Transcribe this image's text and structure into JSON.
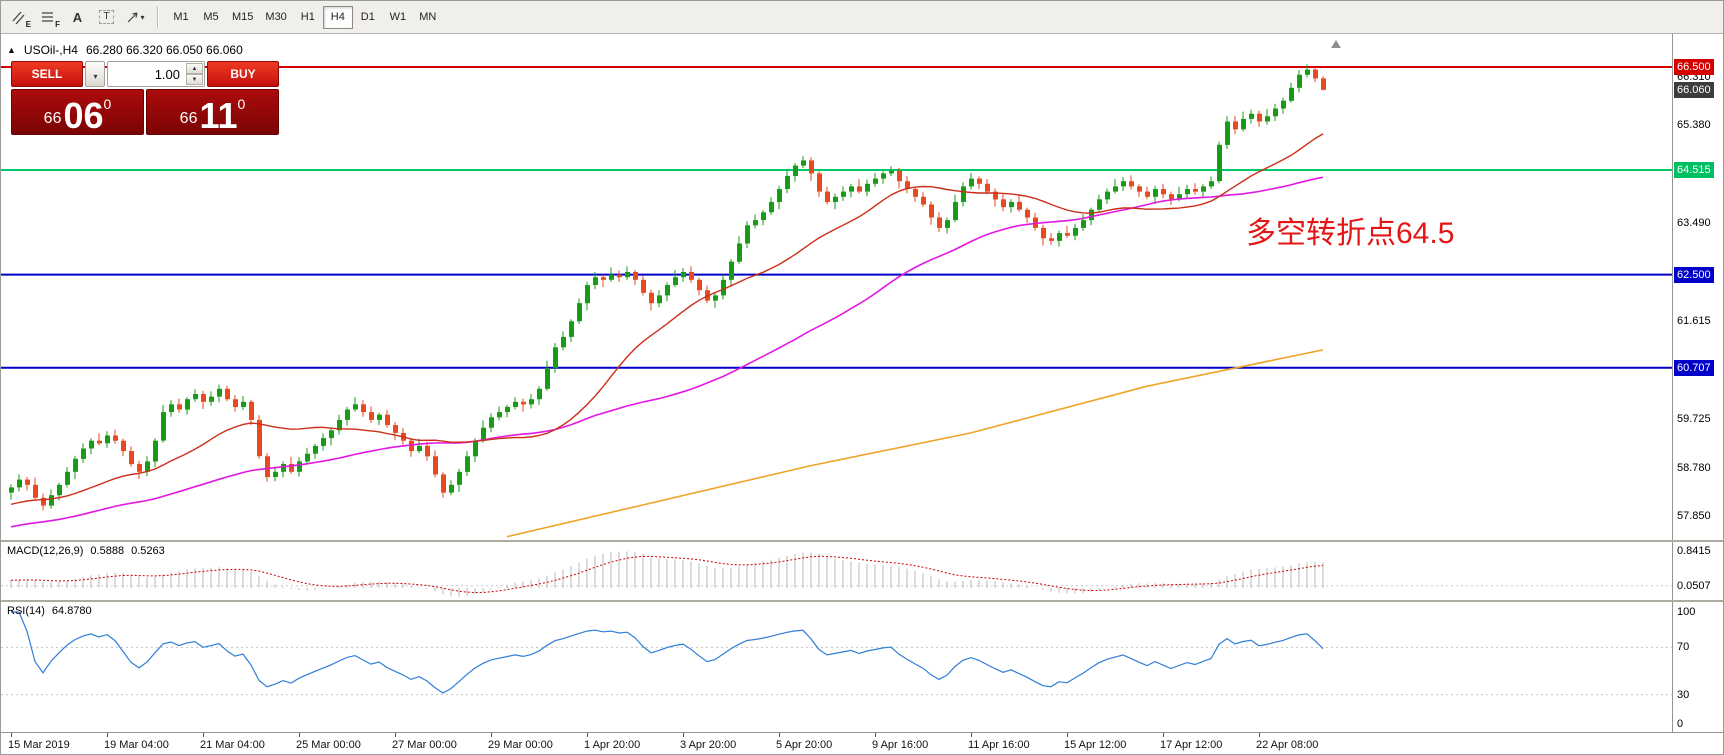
{
  "toolbar": {
    "tools": [
      {
        "label": "E"
      },
      {
        "label": "F"
      },
      {
        "label": "A"
      },
      {
        "label": "T"
      },
      {
        "label": ""
      }
    ],
    "timeframes": [
      "M1",
      "M5",
      "M15",
      "M30",
      "H1",
      "H4",
      "D1",
      "W1",
      "MN"
    ],
    "active_timeframe": "H4"
  },
  "chart": {
    "symbol_header": "USOil-,H4",
    "ohlc_header": "66.280 66.320 66.050 66.060",
    "annotation": {
      "text": "多空转折点64.5",
      "color": "#e31515"
    },
    "trade_panel": {
      "sell_label": "SELL",
      "buy_label": "BUY",
      "volume": "1.00",
      "sell_price": {
        "small": "66",
        "big": "06",
        "sup": "0"
      },
      "buy_price": {
        "small": "66",
        "big": "11",
        "sup": "0"
      }
    },
    "price_axis": [
      {
        "text": "66.500",
        "price": 66.5,
        "style": "red"
      },
      {
        "text": "66.310",
        "price": 66.31,
        "style": "plain"
      },
      {
        "text": "66.060",
        "price": 66.06,
        "style": "dark"
      },
      {
        "text": "65.380",
        "price": 65.38,
        "style": "plain"
      },
      {
        "text": "64.515",
        "price": 64.515,
        "style": "green"
      },
      {
        "text": "63.490",
        "price": 63.49,
        "style": "plain"
      },
      {
        "text": "62.500",
        "price": 62.5,
        "style": "blue"
      },
      {
        "text": "61.615",
        "price": 61.615,
        "style": "plain"
      },
      {
        "text": "60.707",
        "price": 60.707,
        "style": "blue"
      },
      {
        "text": "59.725",
        "price": 59.725,
        "style": "plain"
      },
      {
        "text": "58.780",
        "price": 58.78,
        "style": "plain"
      },
      {
        "text": "57.850",
        "price": 57.85,
        "style": "plain"
      }
    ],
    "hlines": [
      {
        "price": 66.5,
        "color": "#d40000",
        "width": 2
      },
      {
        "price": 64.515,
        "color": "#00c96a",
        "width": 2
      },
      {
        "price": 62.5,
        "color": "#0000c8",
        "width": 2
      },
      {
        "price": 60.707,
        "color": "#0000c8",
        "width": 2
      }
    ]
  },
  "macd": {
    "label": "MACD(12,26,9)",
    "value_main": "0.5888",
    "value_signal": "0.5263",
    "axis": [
      {
        "text": "0.8415",
        "v": 0.8415
      },
      {
        "text": "0.0507",
        "v": 0.0507
      }
    ],
    "level": 0.0507,
    "histogram_color": "#b9b9b9",
    "signal_color": "#cc0000"
  },
  "rsi": {
    "label": "RSI(14)",
    "value": "64.8780",
    "axis": [
      {
        "text": "100",
        "v": 100
      },
      {
        "text": "70",
        "v": 70
      },
      {
        "text": "30",
        "v": 30
      },
      {
        "text": "0",
        "v": 0
      }
    ],
    "levels": [
      70,
      30
    ],
    "line_color": "#2f7ed8"
  },
  "chart_data": {
    "type": "candlestick",
    "symbol": "USOil-",
    "timeframe": "H4",
    "ylim": [
      57.3,
      66.6
    ],
    "bull_color": "#169c16",
    "bear_color": "#e8491e",
    "pre_ramp": {
      "from": 56.8,
      "to": 58.3,
      "count": 60
    },
    "ma_fast": {
      "period": 21,
      "color": "#cc2f18"
    },
    "ma_slow": {
      "period": 55,
      "color": "#e318e3"
    },
    "ma_long": {
      "color": "#efa428",
      "points": [
        [
          62,
          57.45
        ],
        [
          100,
          58.82
        ],
        [
          120,
          59.45
        ],
        [
          142,
          60.35
        ],
        [
          164,
          61.05
        ]
      ]
    },
    "x_labels": [
      {
        "t": "15 Mar 2019",
        "i": 0
      },
      {
        "t": "19 Mar 04:00",
        "i": 12
      },
      {
        "t": "21 Mar 04:00",
        "i": 24
      },
      {
        "t": "25 Mar 00:00",
        "i": 36
      },
      {
        "t": "27 Mar 00:00",
        "i": 48
      },
      {
        "t": "29 Mar 00:00",
        "i": 60
      },
      {
        "t": "1 Apr 20:00",
        "i": 72
      },
      {
        "t": "3 Apr 20:00",
        "i": 84
      },
      {
        "t": "5 Apr 20:00",
        "i": 96
      },
      {
        "t": "9 Apr 16:00",
        "i": 108
      },
      {
        "t": "11 Apr 16:00",
        "i": 120
      },
      {
        "t": "15 Apr 12:00",
        "i": 132
      },
      {
        "t": "17 Apr 12:00",
        "i": 144
      },
      {
        "t": "22 Apr 08:00",
        "i": 156
      }
    ],
    "ohlc": [
      [
        58.3,
        58.46,
        58.16,
        58.4
      ],
      [
        58.4,
        58.65,
        58.32,
        58.55
      ],
      [
        58.55,
        58.6,
        58.34,
        58.45
      ],
      [
        58.45,
        58.59,
        58.16,
        58.2
      ],
      [
        58.2,
        58.28,
        57.96,
        58.05
      ],
      [
        58.05,
        58.36,
        57.99,
        58.25
      ],
      [
        58.25,
        58.49,
        58.15,
        58.45
      ],
      [
        58.45,
        58.79,
        58.4,
        58.7
      ],
      [
        58.7,
        59.01,
        58.56,
        58.95
      ],
      [
        58.95,
        59.25,
        58.87,
        59.15
      ],
      [
        59.15,
        59.35,
        59.04,
        59.3
      ],
      [
        59.3,
        59.44,
        59.21,
        59.25
      ],
      [
        59.25,
        59.48,
        59.16,
        59.4
      ],
      [
        59.4,
        59.51,
        59.24,
        59.3
      ],
      [
        59.3,
        59.34,
        59.0,
        59.1
      ],
      [
        59.1,
        59.19,
        58.8,
        58.85
      ],
      [
        58.85,
        58.91,
        58.56,
        58.7
      ],
      [
        58.7,
        59.0,
        58.62,
        58.9
      ],
      [
        58.9,
        59.35,
        58.79,
        59.3
      ],
      [
        59.3,
        59.99,
        59.26,
        59.85
      ],
      [
        59.85,
        60.08,
        59.76,
        60.0
      ],
      [
        60.0,
        60.11,
        59.84,
        59.9
      ],
      [
        59.9,
        60.14,
        59.8,
        60.1
      ],
      [
        60.1,
        60.29,
        60.05,
        60.2
      ],
      [
        60.2,
        60.26,
        59.91,
        60.05
      ],
      [
        60.05,
        60.25,
        59.97,
        60.15
      ],
      [
        60.15,
        60.38,
        60.04,
        60.3
      ],
      [
        60.3,
        60.36,
        60.06,
        60.1
      ],
      [
        60.1,
        60.18,
        59.86,
        59.95
      ],
      [
        59.95,
        60.16,
        59.89,
        60.05
      ],
      [
        60.05,
        60.09,
        59.6,
        59.7
      ],
      [
        59.7,
        59.79,
        58.95,
        59.0
      ],
      [
        59.0,
        59.06,
        58.51,
        58.6
      ],
      [
        58.6,
        58.8,
        58.52,
        58.7
      ],
      [
        58.7,
        58.9,
        58.59,
        58.85
      ],
      [
        58.85,
        58.99,
        58.66,
        58.7
      ],
      [
        58.7,
        58.98,
        58.61,
        58.9
      ],
      [
        58.9,
        59.16,
        58.84,
        59.05
      ],
      [
        59.05,
        59.24,
        58.95,
        59.2
      ],
      [
        59.2,
        59.44,
        59.11,
        59.35
      ],
      [
        59.35,
        59.56,
        59.21,
        59.5
      ],
      [
        59.5,
        59.8,
        59.42,
        59.7
      ],
      [
        59.7,
        59.95,
        59.59,
        59.9
      ],
      [
        59.9,
        60.14,
        59.86,
        60.0
      ],
      [
        60.0,
        60.08,
        59.76,
        59.85
      ],
      [
        59.85,
        59.96,
        59.64,
        59.7
      ],
      [
        59.7,
        59.84,
        59.6,
        59.8
      ],
      [
        59.8,
        59.89,
        59.55,
        59.6
      ],
      [
        59.6,
        59.66,
        59.31,
        59.45
      ],
      [
        59.45,
        59.55,
        59.22,
        59.3
      ],
      [
        59.3,
        59.35,
        58.99,
        59.1
      ],
      [
        59.1,
        59.34,
        59.06,
        59.2
      ],
      [
        59.2,
        59.28,
        58.91,
        59.0
      ],
      [
        59.0,
        59.11,
        58.59,
        58.65
      ],
      [
        58.65,
        58.69,
        58.2,
        58.3
      ],
      [
        58.3,
        58.54,
        58.25,
        58.45
      ],
      [
        58.45,
        58.76,
        58.31,
        58.7
      ],
      [
        58.7,
        59.1,
        58.62,
        59.0
      ],
      [
        59.0,
        59.35,
        58.89,
        59.3
      ],
      [
        59.3,
        59.69,
        59.26,
        59.55
      ],
      [
        59.55,
        59.83,
        59.46,
        59.75
      ],
      [
        59.75,
        59.96,
        59.69,
        59.85
      ],
      [
        59.85,
        59.99,
        59.75,
        59.95
      ],
      [
        59.95,
        60.14,
        59.9,
        60.05
      ],
      [
        60.05,
        60.11,
        59.86,
        60.0
      ],
      [
        60.0,
        60.2,
        59.92,
        60.1
      ],
      [
        60.1,
        60.35,
        59.99,
        60.3
      ],
      [
        60.3,
        60.84,
        60.26,
        60.7
      ],
      [
        60.7,
        61.18,
        60.61,
        61.1
      ],
      [
        61.1,
        61.41,
        61.04,
        61.3
      ],
      [
        61.3,
        61.64,
        61.2,
        61.6
      ],
      [
        61.6,
        62.04,
        61.55,
        61.95
      ],
      [
        61.95,
        62.36,
        61.81,
        62.3
      ],
      [
        62.3,
        62.55,
        62.22,
        62.45
      ],
      [
        62.45,
        62.5,
        62.26,
        62.4
      ],
      [
        62.4,
        62.64,
        62.36,
        62.5
      ],
      [
        62.5,
        62.58,
        62.36,
        62.45
      ],
      [
        62.45,
        62.66,
        62.39,
        62.55
      ],
      [
        62.55,
        62.59,
        62.3,
        62.4
      ],
      [
        62.4,
        62.49,
        62.1,
        62.15
      ],
      [
        62.15,
        62.21,
        61.81,
        61.95
      ],
      [
        61.95,
        62.2,
        61.87,
        62.1
      ],
      [
        62.1,
        62.35,
        61.99,
        62.3
      ],
      [
        62.3,
        62.59,
        62.26,
        62.45
      ],
      [
        62.45,
        62.63,
        62.36,
        62.55
      ],
      [
        62.55,
        62.66,
        62.34,
        62.4
      ],
      [
        62.4,
        62.44,
        62.1,
        62.2
      ],
      [
        62.2,
        62.29,
        61.95,
        62.0
      ],
      [
        62.0,
        62.16,
        61.86,
        62.1
      ],
      [
        62.1,
        62.5,
        62.02,
        62.4
      ],
      [
        62.4,
        62.8,
        62.29,
        62.75
      ],
      [
        62.75,
        63.24,
        62.71,
        63.1
      ],
      [
        63.1,
        63.53,
        63.01,
        63.45
      ],
      [
        63.45,
        63.66,
        63.39,
        63.55
      ],
      [
        63.55,
        63.74,
        63.45,
        63.7
      ],
      [
        63.7,
        63.99,
        63.65,
        63.9
      ],
      [
        63.9,
        64.21,
        63.76,
        64.15
      ],
      [
        64.15,
        64.5,
        64.07,
        64.4
      ],
      [
        64.4,
        64.65,
        64.29,
        64.6
      ],
      [
        64.6,
        64.78,
        64.55,
        64.7
      ],
      [
        64.7,
        64.76,
        64.31,
        64.45
      ],
      [
        64.45,
        64.49,
        64.0,
        64.1
      ],
      [
        64.1,
        64.19,
        63.85,
        63.9
      ],
      [
        63.9,
        64.06,
        63.76,
        64.0
      ],
      [
        64.0,
        64.2,
        63.92,
        64.1
      ],
      [
        64.1,
        64.25,
        63.99,
        64.2
      ],
      [
        64.2,
        64.34,
        64.06,
        64.1
      ],
      [
        64.1,
        64.33,
        64.01,
        64.25
      ],
      [
        64.25,
        64.46,
        64.19,
        64.35
      ],
      [
        64.35,
        64.49,
        64.25,
        64.45
      ],
      [
        64.45,
        64.59,
        64.4,
        64.5
      ],
      [
        64.5,
        64.56,
        64.16,
        64.3
      ],
      [
        64.3,
        64.4,
        64.07,
        64.15
      ],
      [
        64.15,
        64.19,
        63.9,
        64.0
      ],
      [
        64.0,
        64.09,
        63.8,
        63.85
      ],
      [
        63.85,
        63.91,
        63.46,
        63.6
      ],
      [
        63.6,
        63.7,
        63.32,
        63.4
      ],
      [
        63.4,
        63.6,
        63.29,
        63.55
      ],
      [
        63.55,
        64.04,
        63.51,
        63.9
      ],
      [
        63.9,
        64.28,
        63.81,
        64.2
      ],
      [
        64.2,
        64.46,
        64.14,
        64.35
      ],
      [
        64.35,
        64.39,
        64.15,
        64.25
      ],
      [
        64.25,
        64.34,
        64.05,
        64.1
      ],
      [
        64.1,
        64.16,
        63.81,
        63.95
      ],
      [
        63.95,
        64.05,
        63.72,
        63.8
      ],
      [
        63.8,
        63.95,
        63.69,
        63.9
      ],
      [
        63.9,
        64.04,
        63.71,
        63.75
      ],
      [
        63.75,
        63.79,
        63.5,
        63.6
      ],
      [
        63.6,
        63.69,
        63.35,
        63.4
      ],
      [
        63.4,
        63.46,
        63.06,
        63.2
      ],
      [
        63.2,
        63.3,
        63.07,
        63.15
      ],
      [
        63.15,
        63.35,
        63.04,
        63.3
      ],
      [
        63.3,
        63.44,
        63.21,
        63.25
      ],
      [
        63.25,
        63.48,
        63.16,
        63.4
      ],
      [
        63.4,
        63.66,
        63.34,
        63.55
      ],
      [
        63.55,
        63.79,
        63.45,
        63.75
      ],
      [
        63.75,
        64.04,
        63.7,
        63.95
      ],
      [
        63.95,
        64.16,
        63.86,
        64.1
      ],
      [
        64.1,
        64.34,
        64.06,
        64.2
      ],
      [
        64.2,
        64.38,
        64.11,
        64.3
      ],
      [
        64.3,
        64.41,
        64.14,
        64.2
      ],
      [
        64.2,
        64.24,
        64.0,
        64.1
      ],
      [
        64.1,
        64.19,
        63.95,
        64.0
      ],
      [
        64.0,
        64.21,
        63.86,
        64.15
      ],
      [
        64.15,
        64.25,
        63.97,
        64.05
      ],
      [
        64.05,
        64.1,
        63.84,
        63.95
      ],
      [
        63.95,
        64.19,
        63.91,
        64.05
      ],
      [
        64.05,
        64.23,
        63.96,
        64.15
      ],
      [
        64.15,
        64.26,
        64.04,
        64.1
      ],
      [
        64.1,
        64.24,
        64.0,
        64.2
      ],
      [
        64.2,
        64.39,
        64.15,
        64.3
      ],
      [
        64.3,
        65.06,
        64.26,
        65.0
      ],
      [
        65.0,
        65.55,
        64.92,
        65.45
      ],
      [
        65.45,
        65.56,
        65.21,
        65.3
      ],
      [
        65.3,
        65.64,
        65.26,
        65.5
      ],
      [
        65.5,
        65.68,
        65.41,
        65.6
      ],
      [
        65.6,
        65.66,
        65.35,
        65.45
      ],
      [
        65.45,
        65.69,
        65.39,
        65.55
      ],
      [
        65.55,
        65.79,
        65.46,
        65.7
      ],
      [
        65.7,
        65.91,
        65.6,
        65.85
      ],
      [
        65.85,
        66.2,
        65.81,
        66.1
      ],
      [
        66.1,
        66.44,
        66.01,
        66.35
      ],
      [
        66.35,
        66.55,
        66.3,
        66.45
      ],
      [
        66.45,
        66.49,
        66.21,
        66.28
      ],
      [
        66.28,
        66.32,
        66.05,
        66.06
      ]
    ]
  }
}
